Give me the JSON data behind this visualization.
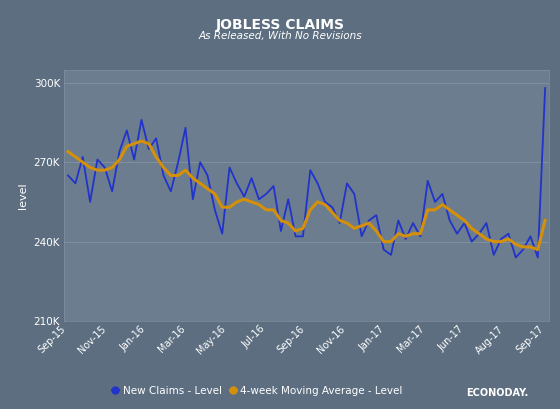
{
  "title": "JOBLESS CLAIMS",
  "subtitle": "As Released, With No Revisions",
  "ylabel": "level",
  "background_color": "#5c6e80",
  "plot_bg_color": "#6b7d8e",
  "title_color": "#ffffff",
  "subtitle_color": "#ffffff",
  "tick_color": "#ffffff",
  "label_color": "#ffffff",
  "grid_color": "#8090a0",
  "line_blue": "#2233cc",
  "line_orange": "#d4900a",
  "ylim": [
    210000,
    305000
  ],
  "yticks": [
    210000,
    240000,
    270000,
    300000
  ],
  "ytick_labels": [
    "210K",
    "240K",
    "270K",
    "300K"
  ],
  "x_labels": [
    "Sep-15",
    "Nov-15",
    "Jan-16",
    "Mar-16",
    "May-16",
    "Jul-16",
    "Sep-16",
    "Nov-16",
    "Jan-17",
    "Mar-17",
    "Jun-17",
    "Aug-17",
    "Sep-17"
  ],
  "new_claims": [
    265000,
    262000,
    272000,
    255000,
    271000,
    268000,
    259000,
    274000,
    282000,
    271000,
    286000,
    275000,
    279000,
    265000,
    259000,
    270000,
    283000,
    256000,
    270000,
    265000,
    252000,
    243000,
    268000,
    262000,
    257000,
    264000,
    256000,
    258000,
    261000,
    244000,
    256000,
    242000,
    242000,
    267000,
    262000,
    255000,
    253000,
    247000,
    262000,
    258000,
    242000,
    248000,
    250000,
    237000,
    235000,
    248000,
    241000,
    247000,
    242000,
    263000,
    255000,
    258000,
    248000,
    243000,
    247000,
    240000,
    243000,
    247000,
    235000,
    241000,
    243000,
    234000,
    237000,
    242000,
    234000,
    298000
  ],
  "ma4_claims": [
    274000,
    272000,
    270000,
    268000,
    267000,
    267000,
    268000,
    271000,
    276000,
    277000,
    278000,
    277000,
    272000,
    268000,
    265000,
    265000,
    267000,
    264000,
    262000,
    260000,
    258000,
    253000,
    253000,
    255000,
    256000,
    255000,
    254000,
    252000,
    252000,
    248000,
    247000,
    244000,
    245000,
    252000,
    255000,
    254000,
    251000,
    248000,
    247000,
    245000,
    246000,
    247000,
    244000,
    240000,
    240000,
    243000,
    242000,
    243000,
    243000,
    252000,
    252000,
    254000,
    252000,
    250000,
    248000,
    245000,
    243000,
    241000,
    240000,
    240000,
    241000,
    239000,
    238000,
    238000,
    237000,
    248000
  ],
  "legend_blue_label": "New Claims - Level",
  "legend_orange_label": "4-week Moving Average - Level",
  "econoday_text": "ECONODAY.",
  "n_points": 66
}
